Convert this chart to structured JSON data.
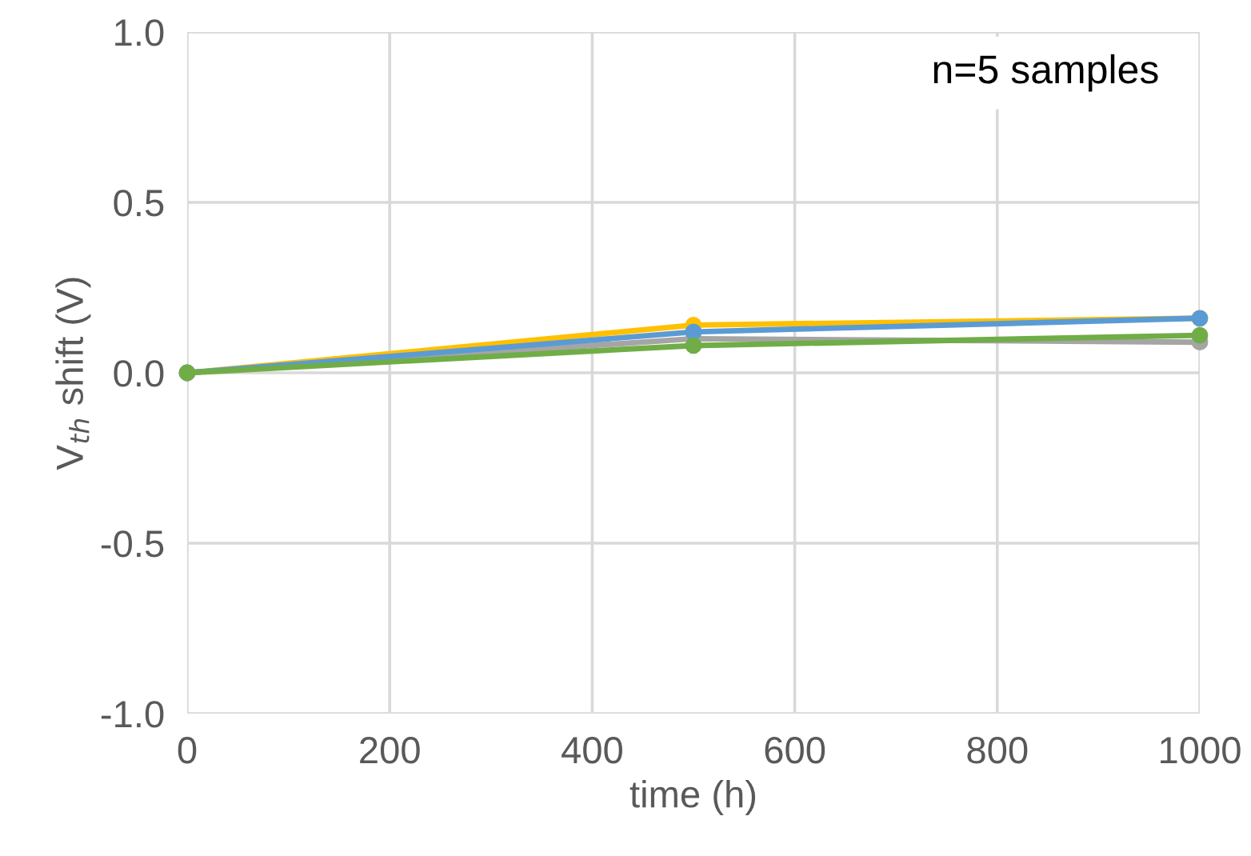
{
  "chart_data": {
    "type": "line",
    "xlabel": "time (h)",
    "ylabel": "V$_{th}$ shift (V)",
    "annotations": [
      "n=5 samples"
    ],
    "x": [
      0,
      500,
      1000
    ],
    "series": [
      {
        "color": "#ffc000",
        "values": [
          0,
          0.14,
          0.16
        ]
      },
      {
        "color": "#a5a5a5",
        "values": [
          0,
          0.1,
          0.09
        ]
      },
      {
        "color": "#5b9bd5",
        "values": [
          0,
          0.12,
          0.16
        ]
      },
      {
        "color": "#70ad47",
        "values": [
          0,
          0.08,
          0.11
        ]
      }
    ],
    "xlim": [
      0,
      1000
    ],
    "xticks": [
      0,
      200,
      400,
      600,
      800,
      1000
    ],
    "ylim": [
      -1.0,
      1.0
    ],
    "yticks": [
      {
        "value": -1.0,
        "label": "-1.0"
      },
      {
        "value": -0.5,
        "label": "-0.5"
      },
      {
        "value": 0.0,
        "label": "0.0"
      },
      {
        "value": 0.5,
        "label": "0.5"
      },
      {
        "value": 1.0,
        "label": "1.0"
      }
    ],
    "grid": true,
    "marker": "circle",
    "line_style": "solid"
  }
}
